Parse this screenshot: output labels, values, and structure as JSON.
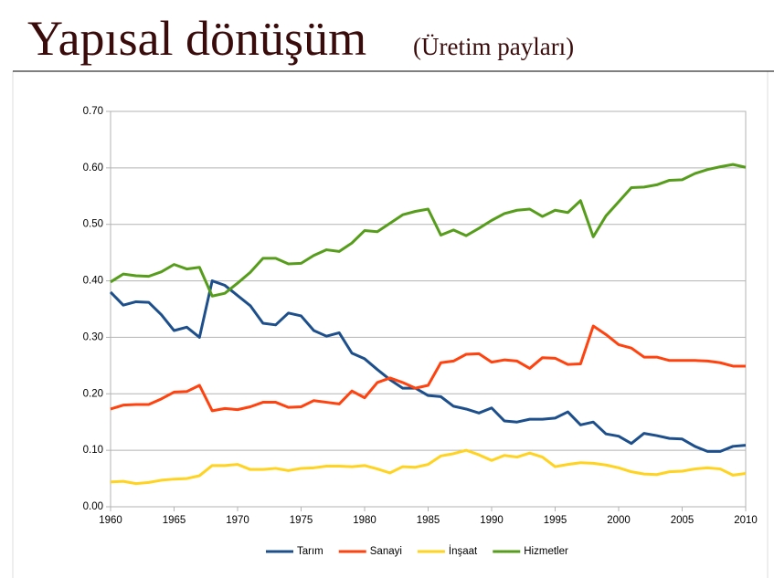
{
  "chart_data": {
    "type": "line",
    "title": "Yapısal dönüşüm",
    "subtitle": "(Üretim payları)",
    "x": [
      1960,
      1961,
      1962,
      1963,
      1964,
      1965,
      1966,
      1967,
      1968,
      1969,
      1970,
      1971,
      1972,
      1973,
      1974,
      1975,
      1976,
      1977,
      1978,
      1979,
      1980,
      1981,
      1982,
      1983,
      1984,
      1985,
      1986,
      1987,
      1988,
      1989,
      1990,
      1991,
      1992,
      1993,
      1994,
      1995,
      1996,
      1997,
      1998,
      1999,
      2000,
      2001,
      2002,
      2003,
      2004,
      2005,
      2006,
      2007,
      2008,
      2009,
      2010
    ],
    "series": [
      {
        "name": "Tarım",
        "color": "#1c4f8b",
        "values": [
          0.38,
          0.357,
          0.363,
          0.362,
          0.34,
          0.312,
          0.318,
          0.3,
          0.4,
          0.392,
          0.374,
          0.356,
          0.325,
          0.322,
          0.343,
          0.338,
          0.312,
          0.302,
          0.308,
          0.272,
          0.262,
          0.243,
          0.225,
          0.21,
          0.21,
          0.197,
          0.195,
          0.178,
          0.173,
          0.166,
          0.175,
          0.152,
          0.15,
          0.155,
          0.155,
          0.157,
          0.168,
          0.145,
          0.15,
          0.129,
          0.125,
          0.112,
          0.13,
          0.126,
          0.121,
          0.12,
          0.107,
          0.098,
          0.098,
          0.107,
          0.109
        ]
      },
      {
        "name": "Sanayi",
        "color": "#ff420e",
        "values": [
          0.173,
          0.18,
          0.181,
          0.181,
          0.191,
          0.203,
          0.204,
          0.215,
          0.17,
          0.174,
          0.172,
          0.177,
          0.185,
          0.185,
          0.176,
          0.177,
          0.188,
          0.185,
          0.182,
          0.205,
          0.193,
          0.22,
          0.228,
          0.22,
          0.21,
          0.215,
          0.255,
          0.258,
          0.27,
          0.271,
          0.256,
          0.26,
          0.258,
          0.245,
          0.264,
          0.263,
          0.252,
          0.253,
          0.32,
          0.305,
          0.287,
          0.281,
          0.265,
          0.265,
          0.259,
          0.259,
          0.259,
          0.258,
          0.255,
          0.249,
          0.249
        ]
      },
      {
        "name": "İnşaat",
        "color": "#ffd320",
        "values": [
          0.044,
          0.045,
          0.041,
          0.043,
          0.047,
          0.049,
          0.05,
          0.055,
          0.073,
          0.073,
          0.075,
          0.066,
          0.066,
          0.068,
          0.064,
          0.068,
          0.069,
          0.072,
          0.072,
          0.071,
          0.073,
          0.067,
          0.06,
          0.071,
          0.07,
          0.075,
          0.09,
          0.094,
          0.1,
          0.092,
          0.082,
          0.091,
          0.088,
          0.095,
          0.088,
          0.071,
          0.075,
          0.078,
          0.077,
          0.074,
          0.069,
          0.062,
          0.058,
          0.057,
          0.062,
          0.063,
          0.067,
          0.069,
          0.067,
          0.056,
          0.059
        ]
      },
      {
        "name": "Hizmetler",
        "color": "#579d1c",
        "values": [
          0.398,
          0.412,
          0.409,
          0.408,
          0.416,
          0.429,
          0.421,
          0.424,
          0.373,
          0.378,
          0.396,
          0.415,
          0.44,
          0.44,
          0.43,
          0.431,
          0.445,
          0.455,
          0.452,
          0.467,
          0.489,
          0.487,
          0.502,
          0.517,
          0.523,
          0.527,
          0.481,
          0.49,
          0.48,
          0.493,
          0.507,
          0.519,
          0.525,
          0.527,
          0.514,
          0.525,
          0.521,
          0.542,
          0.478,
          0.515,
          0.54,
          0.565,
          0.566,
          0.57,
          0.578,
          0.579,
          0.59,
          0.597,
          0.602,
          0.606,
          0.601
        ]
      }
    ],
    "xlim": [
      1960,
      2010
    ],
    "xticks": [
      1960,
      1965,
      1970,
      1975,
      1980,
      1985,
      1990,
      1995,
      2000,
      2005,
      2010
    ],
    "ylim": [
      0,
      0.7
    ],
    "yticks": [
      {
        "value": 0,
        "label": "0.00"
      },
      {
        "value": 0.1,
        "label": "0.10"
      },
      {
        "value": 0.2,
        "label": "0.20"
      },
      {
        "value": 0.3,
        "label": "0.30"
      },
      {
        "value": 0.4,
        "label": "0.40"
      },
      {
        "value": 0.5,
        "label": "0.50"
      },
      {
        "value": 0.6,
        "label": "0.60"
      },
      {
        "value": 0.7,
        "label": "0.70"
      }
    ],
    "grid": true,
    "legend": "bottom"
  }
}
